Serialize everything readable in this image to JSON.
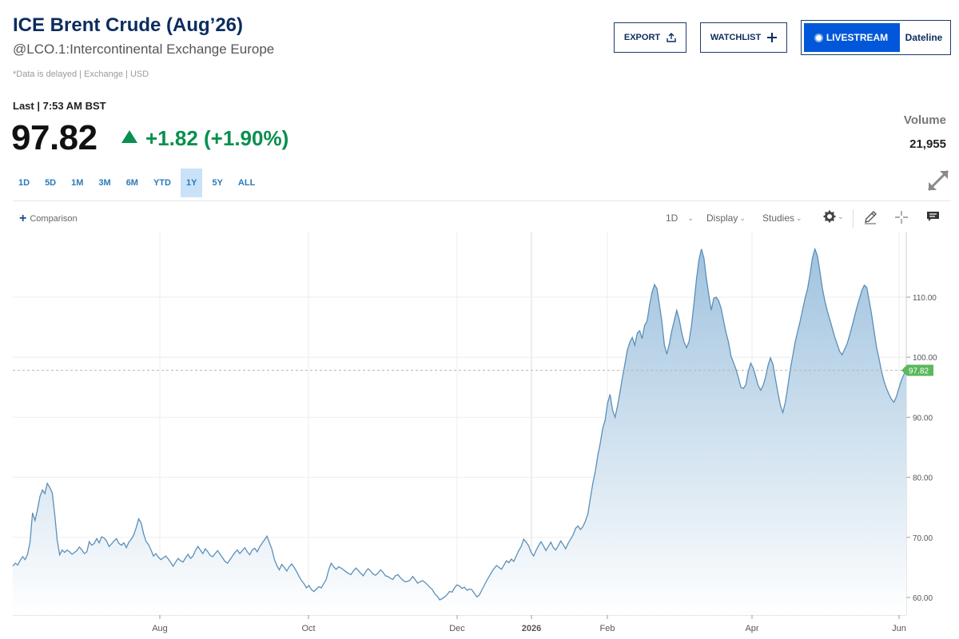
{
  "header": {
    "title": "ICE Brent Crude (Aug’26)",
    "subtitle": "@LCO.1:Intercontinental Exchange Europe",
    "disclaimer": "*Data is delayed | Exchange | USD"
  },
  "actions": {
    "export_label": "EXPORT",
    "watchlist_label": "WATCHLIST",
    "livestream_label": "LIVESTREAM",
    "dateline_label": "Dateline"
  },
  "quote": {
    "last_label": "Last | 7:53 AM BST",
    "price": "97.82",
    "change": "+1.82 (+1.90%)",
    "volume_label": "Volume",
    "volume_value": "21,955"
  },
  "ranges": [
    "1D",
    "5D",
    "1M",
    "3M",
    "6M",
    "YTD",
    "1Y",
    "5Y",
    "ALL"
  ],
  "active_range": "1Y",
  "toolbar": {
    "comparison_label": "Comparison",
    "interval_label": "1D",
    "display_label": "Display",
    "studies_label": "Studies"
  },
  "icons": [
    "export-icon",
    "plus-icon",
    "live-dot-icon",
    "expand-icon",
    "gear-icon",
    "pencil-icon",
    "crosshair-icon",
    "comment-icon"
  ],
  "colors": {
    "accent": "#0057d9",
    "up": "#0a8f4f",
    "line": "#5b8fb9",
    "last_badge": "#5cb85c"
  },
  "chart_data": {
    "type": "area",
    "x_tick_labels": [
      "Aug",
      "Oct",
      "Dec",
      "2026",
      "Feb",
      "Apr",
      "Jun"
    ],
    "y_tick_labels": [
      "110.00",
      "100.00",
      "90.00",
      "80.00",
      "70.00",
      "60.00"
    ],
    "ylim": [
      57,
      120
    ],
    "last_value": 97.82,
    "last_label": "97.82",
    "grid": true,
    "series": [
      {
        "values": [
          65.2,
          65.7,
          65.4,
          66.2,
          66.8,
          66.3,
          67.2,
          69.2,
          74.1,
          72.8,
          74.6,
          76.8,
          77.9,
          77.3,
          79.0,
          78.3,
          77.4,
          73.8,
          69.5,
          67.1,
          67.9,
          67.5,
          67.9,
          67.6,
          67.2,
          67.5,
          67.8,
          68.4,
          67.9,
          67.3,
          67.6,
          69.3,
          68.7,
          69.0,
          69.8,
          69.1,
          70.1,
          69.9,
          69.4,
          68.5,
          68.9,
          69.4,
          69.8,
          69.0,
          68.7,
          69.1,
          68.3,
          69.2,
          69.7,
          70.4,
          71.6,
          73.1,
          72.4,
          70.6,
          69.3,
          68.8,
          67.9,
          66.9,
          67.3,
          66.7,
          66.3,
          66.6,
          66.9,
          66.4,
          65.8,
          65.2,
          65.9,
          66.5,
          66.1,
          65.9,
          66.6,
          67.2,
          66.5,
          66.9,
          67.8,
          68.5,
          67.9,
          67.3,
          68.1,
          67.6,
          67.0,
          66.8,
          67.3,
          67.8,
          67.2,
          66.6,
          66.0,
          65.7,
          66.3,
          66.9,
          67.5,
          67.9,
          67.3,
          67.8,
          68.3,
          67.6,
          67.1,
          67.9,
          68.2,
          67.6,
          68.4,
          69.0,
          69.6,
          70.2,
          69.1,
          68.0,
          66.3,
          65.3,
          64.6,
          65.5,
          65.0,
          64.4,
          65.1,
          65.6,
          65.0,
          64.3,
          63.5,
          62.8,
          62.3,
          61.6,
          62.0,
          61.3,
          61.0,
          61.4,
          61.8,
          61.6,
          62.3,
          63.0,
          64.6,
          65.7,
          65.1,
          64.7,
          65.1,
          64.9,
          64.6,
          64.3,
          64.0,
          63.8,
          64.4,
          64.9,
          64.5,
          64.0,
          63.6,
          64.3,
          64.8,
          64.4,
          63.9,
          63.7,
          64.1,
          64.6,
          64.2,
          63.6,
          63.5,
          63.2,
          63.0,
          63.6,
          63.8,
          63.3,
          62.9,
          62.6,
          62.7,
          62.9,
          63.5,
          63.0,
          62.4,
          62.6,
          62.8,
          62.5,
          62.1,
          61.7,
          61.3,
          60.6,
          60.2,
          59.6,
          59.8,
          60.1,
          60.5,
          61.0,
          60.9,
          61.6,
          62.1,
          61.9,
          61.5,
          61.7,
          61.2,
          61.4,
          61.3,
          60.7,
          60.1,
          60.4,
          61.2,
          62.0,
          62.8,
          63.5,
          64.2,
          64.8,
          65.3,
          65.0,
          64.7,
          65.4,
          66.1,
          65.8,
          66.4,
          66.0,
          66.9,
          67.8,
          68.5,
          69.7,
          69.2,
          68.6,
          67.5,
          66.9,
          67.8,
          68.6,
          69.3,
          68.6,
          67.8,
          68.5,
          69.2,
          68.3,
          67.9,
          68.6,
          69.4,
          68.8,
          68.1,
          69.0,
          69.7,
          70.4,
          71.5,
          71.9,
          71.3,
          71.8,
          72.7,
          73.9,
          76.5,
          79.0,
          81.0,
          83.6,
          85.6,
          88.1,
          89.5,
          92.4,
          93.8,
          91.2,
          90.0,
          91.9,
          94.1,
          96.6,
          98.8,
          101.2,
          102.5,
          103.3,
          102.0,
          104.0,
          104.4,
          103.1,
          105.3,
          106.0,
          108.7,
          110.8,
          112.1,
          111.4,
          108.7,
          105.9,
          102.1,
          100.5,
          102.2,
          104.4,
          106.1,
          107.8,
          106.3,
          104.1,
          102.5,
          101.6,
          102.6,
          105.3,
          109.0,
          113.0,
          116.2,
          118.0,
          116.5,
          113.2,
          110.4,
          107.8,
          109.8,
          110.0,
          109.4,
          108.1,
          106.0,
          104.1,
          102.5,
          100.2,
          99.1,
          98.0,
          96.6,
          95.0,
          94.8,
          95.4,
          97.6,
          99.0,
          98.2,
          96.8,
          95.3,
          94.5,
          95.3,
          96.7,
          98.6,
          99.9,
          98.8,
          96.4,
          94.1,
          92.0,
          90.8,
          92.5,
          95.1,
          97.9,
          100.2,
          102.5,
          104.3,
          106.0,
          107.9,
          109.8,
          111.4,
          113.8,
          116.5,
          118.0,
          116.9,
          114.3,
          111.5,
          109.4,
          107.7,
          106.3,
          104.9,
          103.4,
          102.2,
          101.0,
          100.4,
          101.3,
          102.2,
          103.6,
          105.1,
          106.7,
          108.3,
          109.7,
          111.1,
          112.0,
          111.6,
          109.4,
          107.0,
          104.2,
          101.6,
          99.7,
          97.6,
          96.0,
          94.8,
          93.8,
          93.0,
          92.5,
          93.4,
          94.8,
          96.1,
          97.1,
          97.82
        ]
      }
    ]
  }
}
